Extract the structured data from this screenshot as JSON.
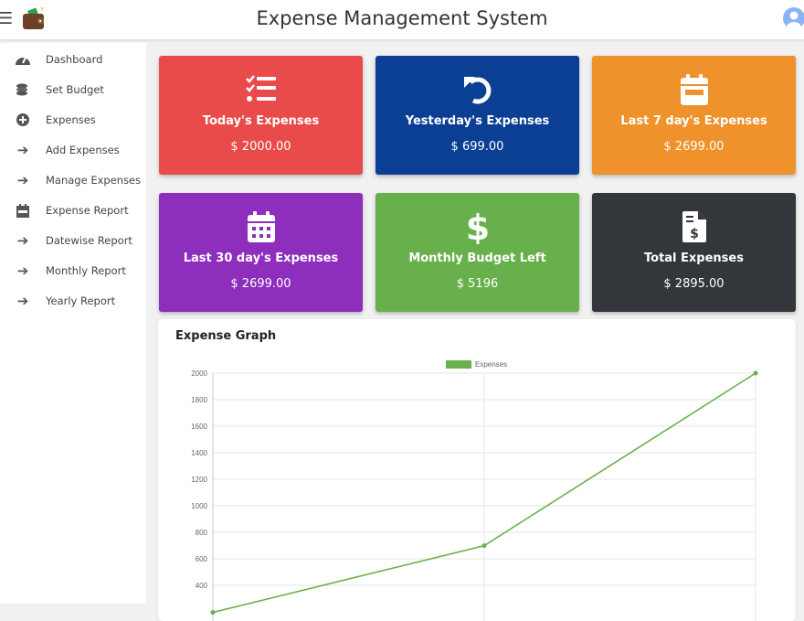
{
  "header": {
    "title": "Expense Management System",
    "menu_icon": "hamburger-icon",
    "logo_icon": "wallet-icon",
    "avatar_icon": "user-icon"
  },
  "sidebar": {
    "items": [
      {
        "label": "Dashboard",
        "icon": "tachometer-icon"
      },
      {
        "label": "Set Budget",
        "icon": "coins-icon"
      },
      {
        "label": "Expenses",
        "icon": "plus-circle-icon"
      },
      {
        "label": "Add Expenses",
        "icon": "arrow-right-icon"
      },
      {
        "label": "Manage Expenses",
        "icon": "arrow-right-icon"
      },
      {
        "label": "Expense Report",
        "icon": "calendar-icon"
      },
      {
        "label": "Datewise Report",
        "icon": "arrow-right-icon"
      },
      {
        "label": "Monthly Report",
        "icon": "arrow-right-icon"
      },
      {
        "label": "Yearly Report",
        "icon": "arrow-right-icon"
      }
    ]
  },
  "cards": [
    {
      "title": "Today's Expenses",
      "value": "$ 2000.00",
      "color": "#e94b4b",
      "icon": "tasks-icon"
    },
    {
      "title": "Yesterday's Expenses",
      "value": "$ 699.00",
      "color": "#0b3f94",
      "icon": "undo-icon"
    },
    {
      "title": "Last 7 day's Expenses",
      "value": "$ 2699.00",
      "color": "#ef922c",
      "icon": "calendar-week-icon"
    },
    {
      "title": "Last 30 day's Expenses",
      "value": "$ 2699.00",
      "color": "#8e2ebd",
      "icon": "calendar-days-icon"
    },
    {
      "title": "Monthly Budget Left",
      "value": "$ 5196",
      "color": "#68b04b",
      "icon": "dollar-icon"
    },
    {
      "title": "Total Expenses",
      "value": "$ 2895.00",
      "color": "#33363b",
      "icon": "invoice-dollar-icon"
    }
  ],
  "graph": {
    "title": "Expense Graph"
  },
  "chart_data": {
    "type": "line",
    "series": [
      {
        "name": "Expenses",
        "values": [
          196,
          699,
          2000
        ],
        "color": "#6ab04c"
      }
    ],
    "yticks": [
      400,
      600,
      800,
      1000,
      1200,
      1400,
      1600,
      1800,
      2000
    ],
    "ylim": [
      0,
      2000
    ],
    "grid": true,
    "legend": "top"
  }
}
